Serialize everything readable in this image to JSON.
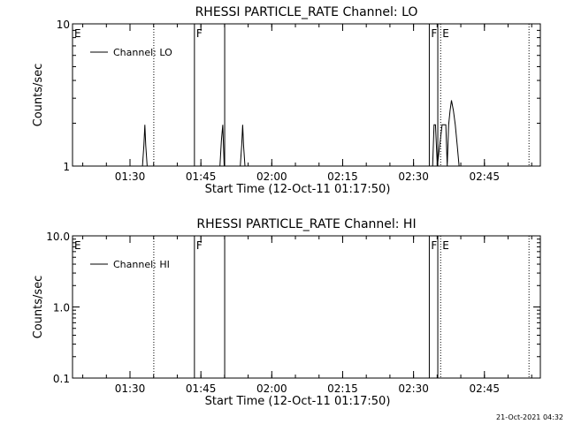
{
  "chart_data": [
    {
      "type": "line",
      "title": "RHESSI PARTICLE_RATE Channel: LO",
      "xlabel": "Start Time (12-Oct-11 01:17:50)",
      "ylabel": "Counts/sec",
      "x_unit": "minutes after 01:17:50",
      "xlim": [
        0,
        99
      ],
      "ylim": [
        1,
        10
      ],
      "yscale": "log",
      "x_ticks": [
        "01:30",
        "01:45",
        "02:00",
        "02:15",
        "02:30",
        "02:45"
      ],
      "y_ticks": [
        "1",
        "10"
      ],
      "legend": {
        "entries": [
          "Channel: LO"
        ],
        "placement": "top-left"
      },
      "grid": false,
      "series": [
        {
          "name": "Channel: LO",
          "x": [
            0,
            14.8,
            15.1,
            15.3,
            15.5,
            15.8,
            31.2,
            31.5,
            31.8,
            32.1,
            35.5,
            35.8,
            36.0,
            36.2,
            36.5,
            76.2,
            76.5,
            76.8,
            77.2,
            78.2,
            78.6,
            79.0,
            79.3,
            79.6,
            79.9,
            80.2,
            80.6,
            81.0,
            81.4,
            81.8,
            83
          ],
          "y": [
            1,
            1,
            1.4,
            1.95,
            1.4,
            1,
            1,
            1.5,
            1.95,
            1,
            1,
            1.4,
            1.95,
            1.4,
            1,
            1,
            1.95,
            1.95,
            1,
            1.95,
            1.95,
            1.95,
            1,
            1.95,
            2.45,
            2.9,
            2.45,
            1.95,
            1.4,
            1,
            1
          ]
        }
      ],
      "event_lines": [
        {
          "x": 0,
          "style": "dotted",
          "label": "E"
        },
        {
          "x": 17.2,
          "style": "dotted",
          "label": ""
        },
        {
          "x": 25.8,
          "style": "solid",
          "label": "F"
        },
        {
          "x": 32.2,
          "style": "solid",
          "label": ""
        },
        {
          "x": 75.5,
          "style": "solid",
          "label": "F"
        },
        {
          "x": 77.3,
          "style": "solid",
          "label": ""
        },
        {
          "x": 77.9,
          "style": "dotted",
          "label": "E"
        },
        {
          "x": 96.6,
          "style": "dotted",
          "label": ""
        }
      ]
    },
    {
      "type": "line",
      "title": "RHESSI PARTICLE_RATE Channel: HI",
      "xlabel": "Start Time (12-Oct-11 01:17:50)",
      "ylabel": "Counts/sec",
      "x_unit": "minutes after 01:17:50",
      "xlim": [
        0,
        99
      ],
      "ylim": [
        0.1,
        10
      ],
      "yscale": "log",
      "x_ticks": [
        "01:30",
        "01:45",
        "02:00",
        "02:15",
        "02:30",
        "02:45"
      ],
      "y_ticks": [
        "0.1",
        "1.0",
        "10.0"
      ],
      "legend": {
        "entries": [
          "Channel: HI"
        ],
        "placement": "top-left"
      },
      "grid": false,
      "series": [],
      "event_lines": [
        {
          "x": 0,
          "style": "dotted",
          "label": "E"
        },
        {
          "x": 17.2,
          "style": "dotted",
          "label": ""
        },
        {
          "x": 25.8,
          "style": "solid",
          "label": "F"
        },
        {
          "x": 32.2,
          "style": "solid",
          "label": ""
        },
        {
          "x": 75.5,
          "style": "solid",
          "label": "F"
        },
        {
          "x": 77.3,
          "style": "solid",
          "label": ""
        },
        {
          "x": 77.9,
          "style": "dotted",
          "label": "E"
        },
        {
          "x": 96.6,
          "style": "dotted",
          "label": ""
        }
      ]
    }
  ],
  "footer": {
    "timestamp": "21-Oct-2021 04:32"
  }
}
